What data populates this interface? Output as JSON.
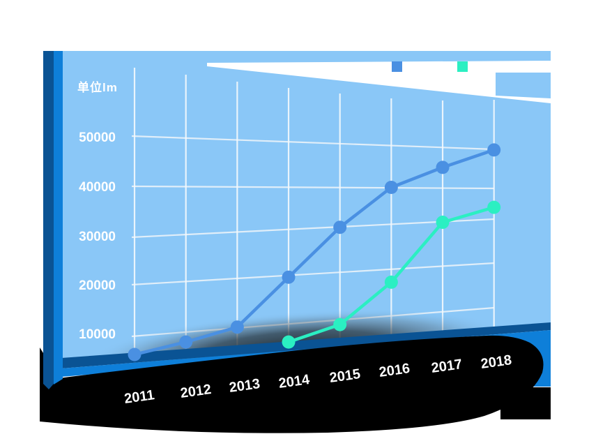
{
  "page": {
    "background": "#ffffff"
  },
  "panel": {
    "face_color": "#8AC7F7",
    "side_dark_color": "#0A5394",
    "side_bright_color": "#0E7FD9",
    "bottom_navy_color": "#0A5394",
    "bottom_bright_color": "#0E7FD9",
    "black_band_color": "#000000",
    "wedge_color": "#ffffff"
  },
  "legend": {
    "items": [
      {
        "label": "",
        "color": "#4A90E2"
      },
      {
        "label": "",
        "color": "#2BEFC2"
      }
    ]
  },
  "chart_data": {
    "type": "line",
    "title": "",
    "unit_label": "单位lm",
    "xlabel": "",
    "ylabel": "",
    "categories": [
      "2011",
      "2012",
      "2013",
      "2014",
      "2015",
      "2016",
      "2017",
      "2018"
    ],
    "yticklabels": [
      "50000",
      "40000",
      "30000",
      "20000",
      "10000"
    ],
    "yticks": [
      50000,
      40000,
      30000,
      20000,
      10000
    ],
    "ylim": [
      0,
      52000
    ],
    "grid": true,
    "legend_position": "top-right",
    "series": [
      {
        "name": "",
        "color": "#4A90E2",
        "values": [
          6500,
          9000,
          12000,
          22000,
          32000,
          40000,
          44000,
          47500
        ]
      },
      {
        "name": "",
        "color": "#2BEFC2",
        "values": [
          null,
          null,
          null,
          9000,
          12500,
          21000,
          33000,
          36000
        ]
      }
    ]
  }
}
